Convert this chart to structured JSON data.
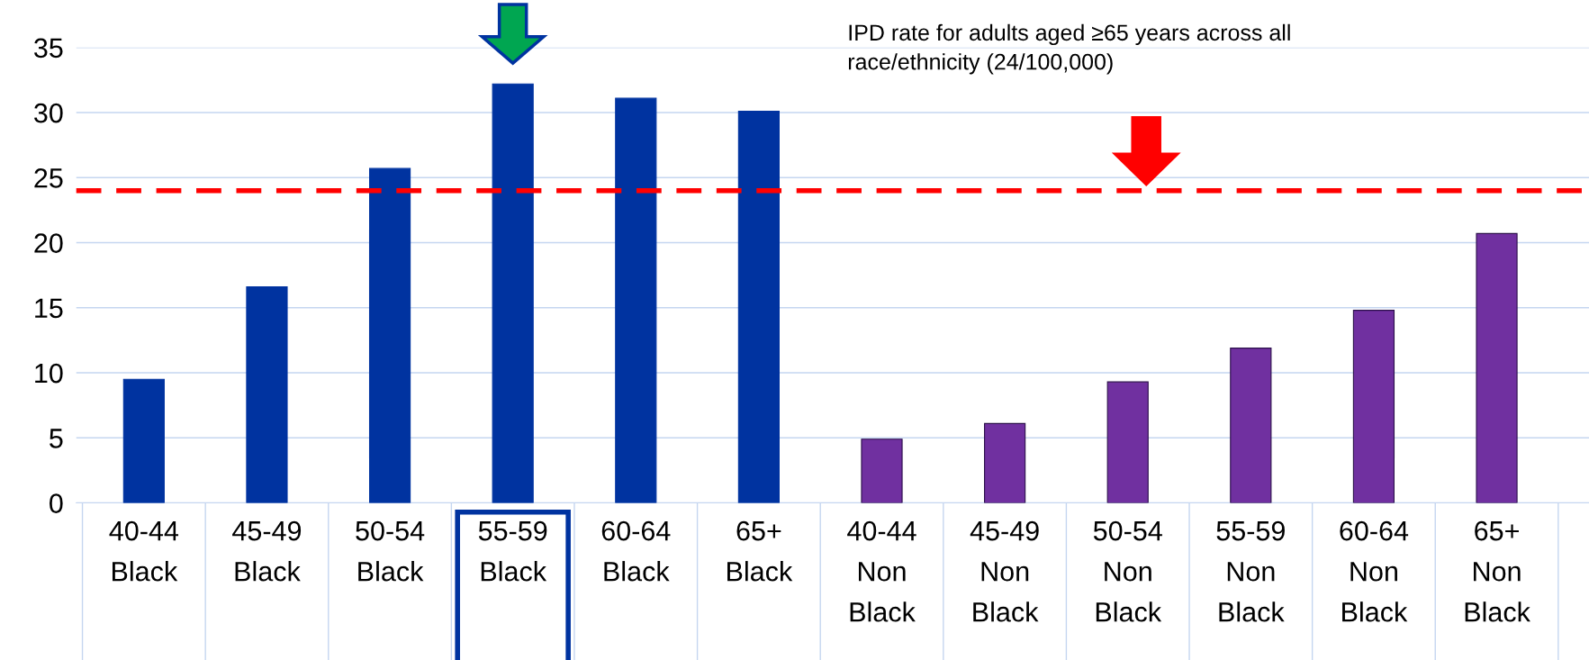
{
  "chart_data": {
    "type": "bar",
    "categories": [
      "40-44\nBlack",
      "45-49\nBlack",
      "50-54\nBlack",
      "55-59\nBlack",
      "60-64\nBlack",
      "65+\nBlack",
      "40-44\nNon\nBlack",
      "45-49\nNon\nBlack",
      "50-54\nNon\nBlack",
      "55-59\nNon\nBlack",
      "60-64\nNon\nBlack",
      "65+\nNon\nBlack"
    ],
    "values": [
      9.5,
      16.6,
      25.7,
      32.2,
      31.1,
      30.1,
      4.9,
      6.1,
      9.3,
      11.9,
      14.8,
      20.7
    ],
    "colors": [
      "#0033a0",
      "#0033a0",
      "#0033a0",
      "#0033a0",
      "#0033a0",
      "#0033a0",
      "#7030a0",
      "#7030a0",
      "#7030a0",
      "#7030a0",
      "#7030a0",
      "#7030a0"
    ],
    "ylim": [
      0,
      35
    ],
    "yticks": [
      0,
      5,
      10,
      15,
      20,
      25,
      30,
      35
    ],
    "grid": "y",
    "ref_lines": [
      {
        "axis": "y",
        "value": 24,
        "color": "#ff0000",
        "line_style": "dashed"
      }
    ],
    "annotations": [
      "IPD rate for adults aged ≥65 years across all\nrace/ethnicity (24/100,000)"
    ]
  }
}
